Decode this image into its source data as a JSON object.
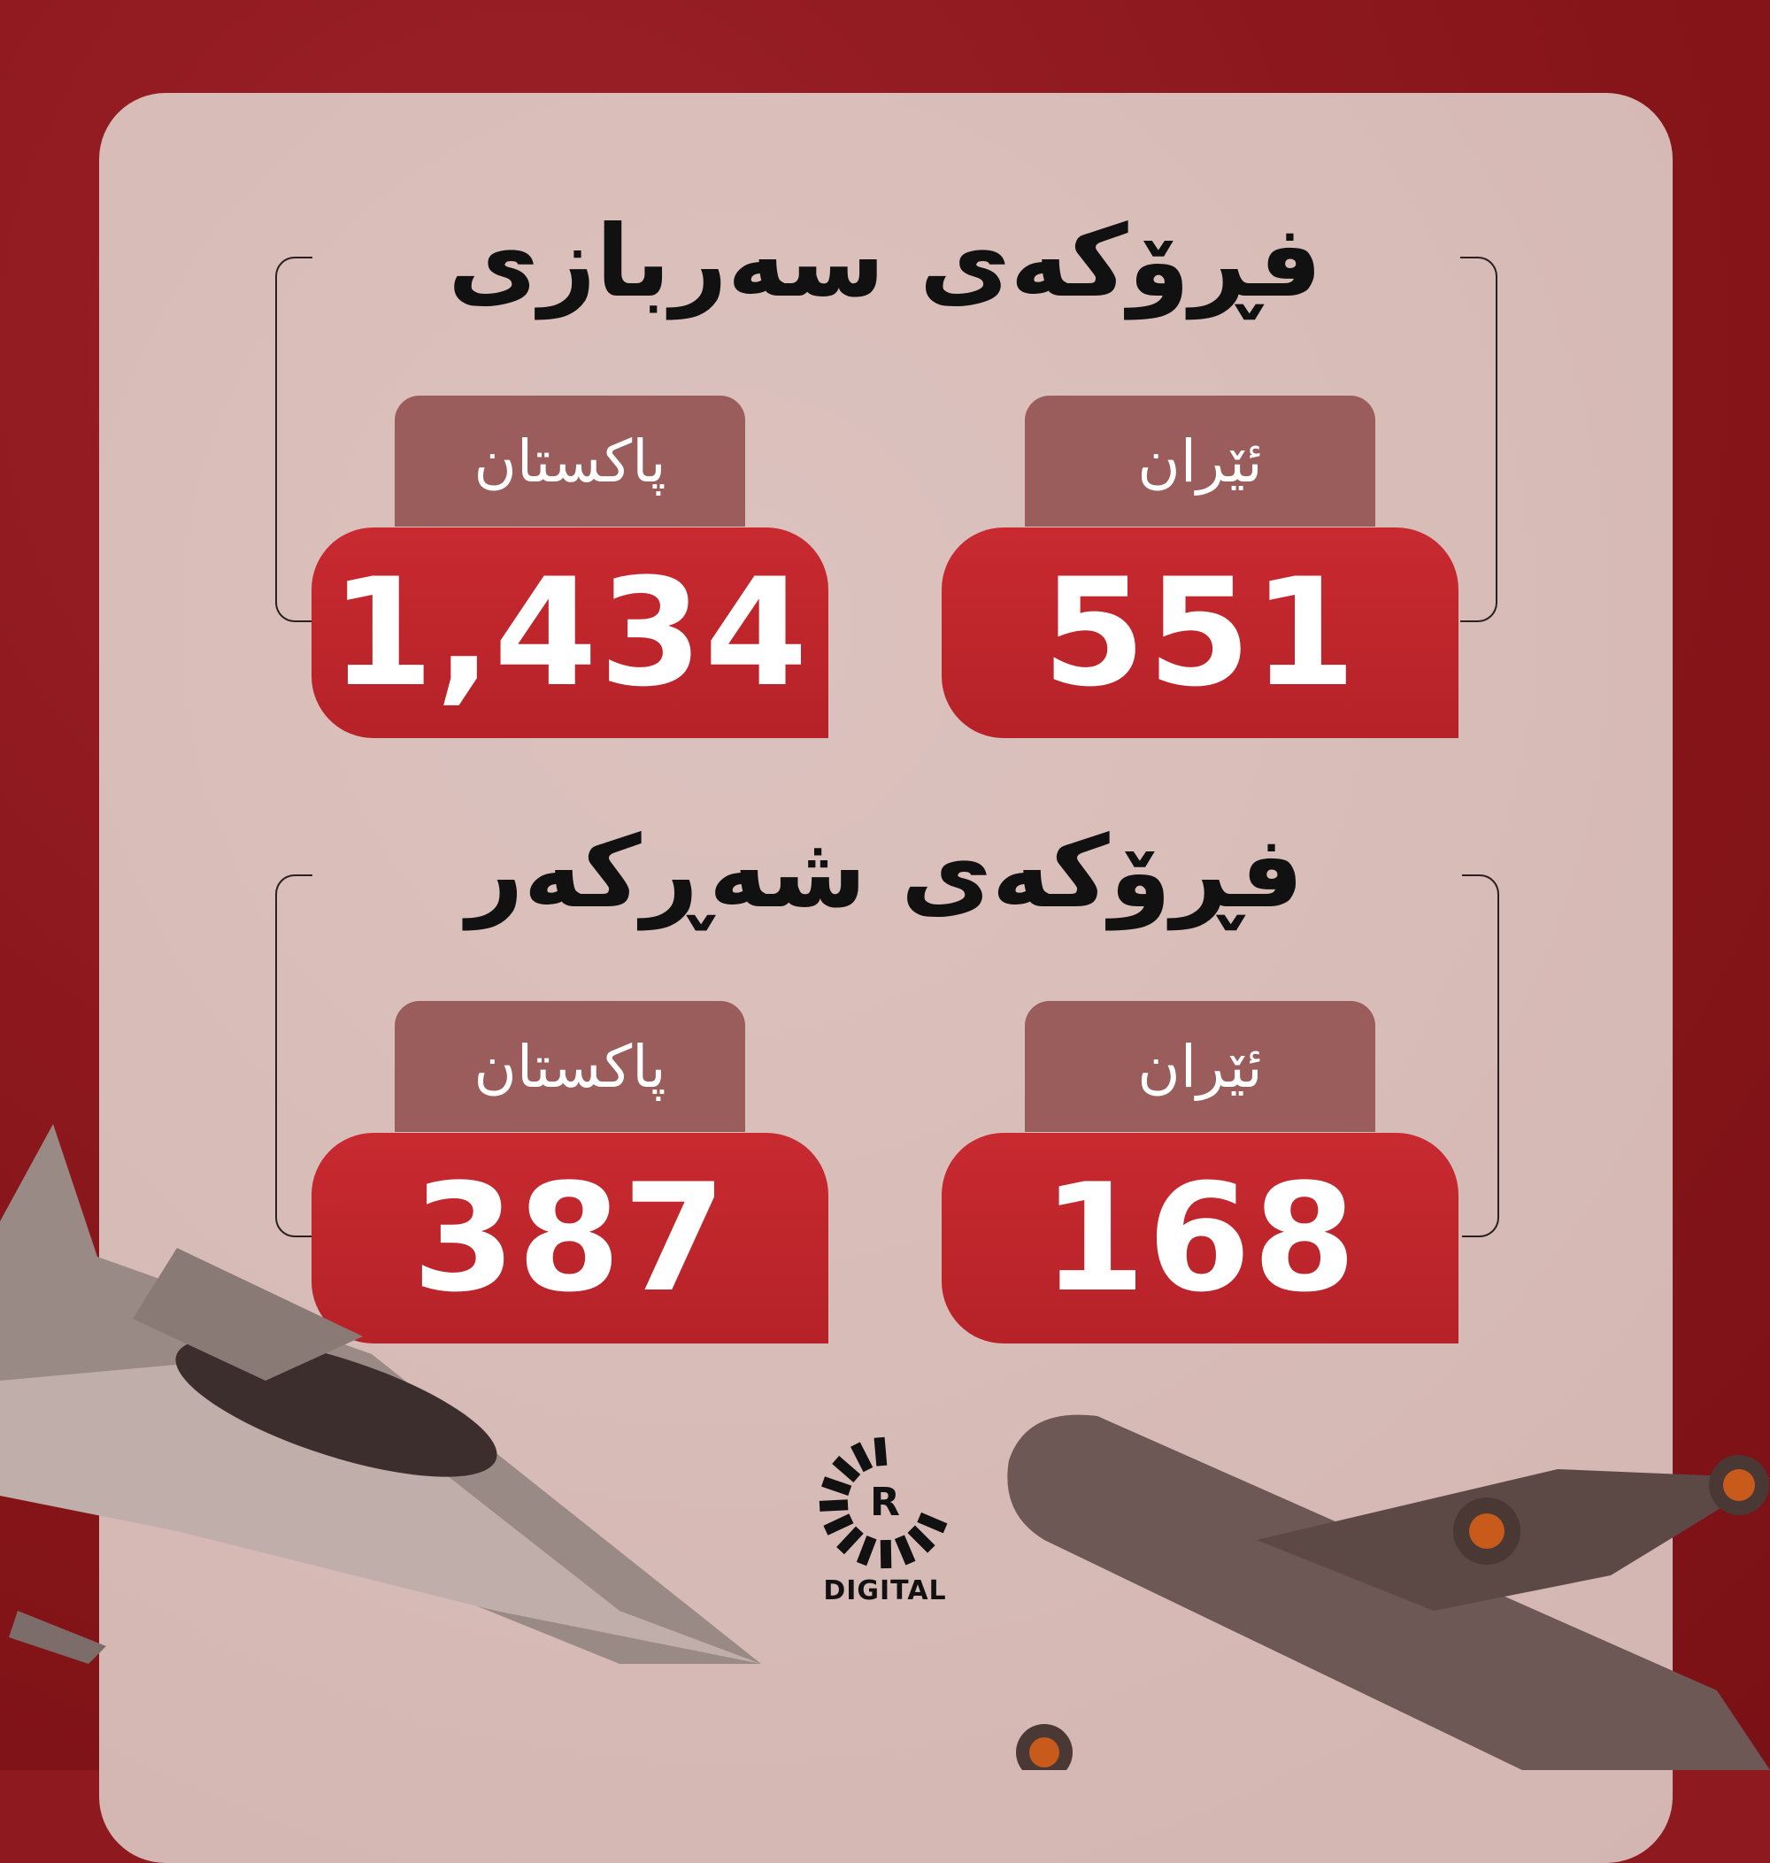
{
  "sections": [
    {
      "title": "فڕۆکەی سەربازی",
      "countries": [
        {
          "name": "ئێران",
          "value": "551"
        },
        {
          "name": "پاکستان",
          "value": "1,434"
        }
      ]
    },
    {
      "title": "فڕۆکەی شەڕکەر",
      "countries": [
        {
          "name": "ئێران",
          "value": "168"
        },
        {
          "name": "پاکستان",
          "value": "387"
        }
      ]
    }
  ],
  "logo": {
    "letter": "R",
    "text": "DIGITAL"
  },
  "colors": {
    "background": "#8e1a1f",
    "card": "#d8bcb8",
    "label_box": "#9a5d5b",
    "value_box": "#c1272d",
    "text_dark": "#111111"
  }
}
